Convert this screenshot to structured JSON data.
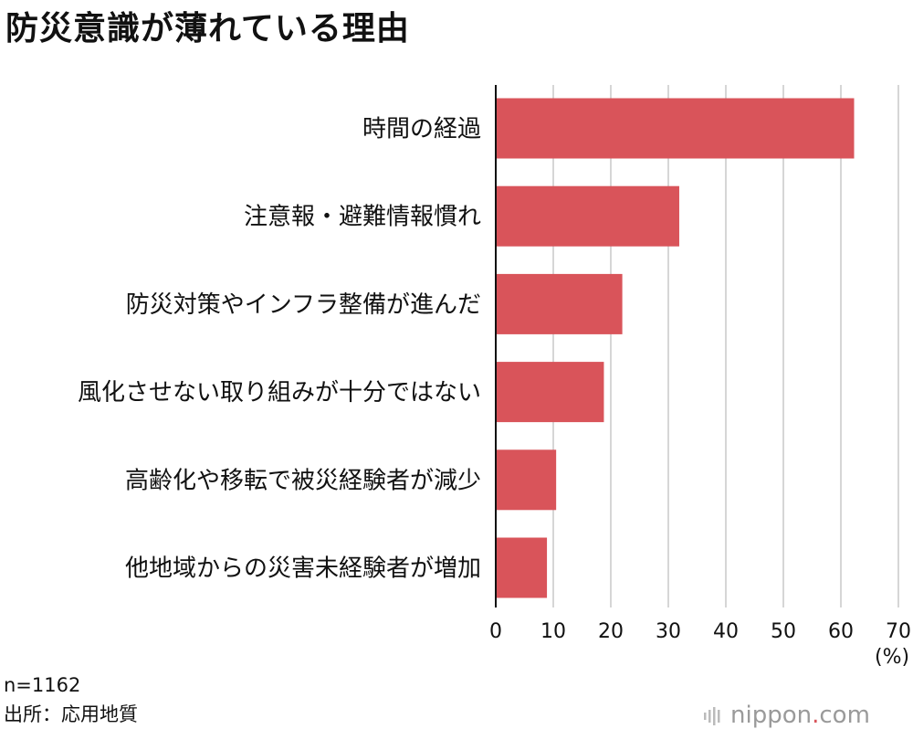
{
  "title": "防災意識が薄れている理由",
  "chart_data": {
    "type": "bar",
    "orientation": "horizontal",
    "title": "防災意識が薄れている理由",
    "categories": [
      "時間の経過",
      "注意報・避難情報慣れ",
      "防災対策やインフラ整備が進んだ",
      "風化させない取り組みが十分ではない",
      "高齢化や移転で被災経験者が減少",
      "他地域からの災害未経験者が増加"
    ],
    "values": [
      62.3,
      31.9,
      22.0,
      18.8,
      10.5,
      8.9
    ],
    "xlim": [
      0,
      70
    ],
    "ticks": [
      "0",
      "10",
      "20",
      "30",
      "40",
      "50",
      "60",
      "70"
    ],
    "unit": "(%)",
    "grid": true,
    "bar_color": "#d9545a"
  },
  "footer": {
    "sample": "n=1162",
    "source": "出所：応用地質"
  },
  "brand": {
    "name": "nippon",
    "dot": ".",
    "suffix": "com"
  }
}
